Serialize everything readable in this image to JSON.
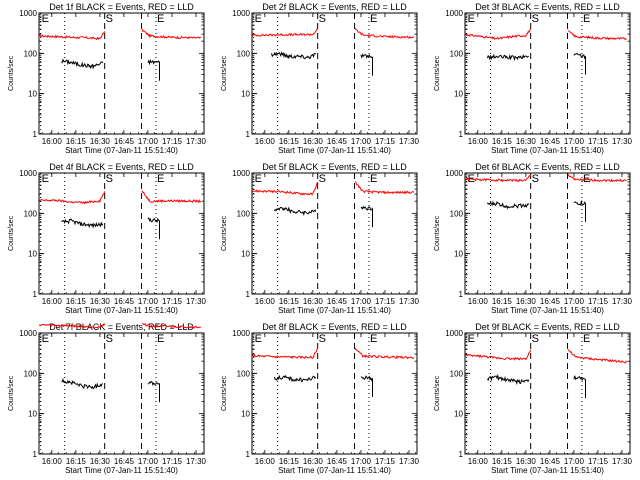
{
  "chart_data": {
    "type": "line",
    "y_scale": "log",
    "ylim": [
      1,
      1000
    ],
    "y_ticks": [
      {
        "value": 1,
        "label": "1"
      },
      {
        "value": 10,
        "label": "10"
      },
      {
        "value": 100,
        "label": "100"
      },
      {
        "value": 1000,
        "label": "1000"
      }
    ],
    "xlim": [
      "15:52",
      "17:35"
    ],
    "x_ticks": [
      "16:00",
      "16:15",
      "16:30",
      "16:45",
      "17:00",
      "17:15",
      "17:30"
    ],
    "ylabel": "Counts/sec",
    "xlabel": "Start Time (07-Jan-11 15:51:40)",
    "series_legend": "BLACK = Events, RED = LLD",
    "series": [
      {
        "name": "Events",
        "color": "#000000"
      },
      {
        "name": "LLD",
        "color": "#ff0000"
      }
    ],
    "markers": [
      {
        "label": "E",
        "time": "15:53",
        "style": "dotted"
      },
      {
        "label": "",
        "time": "16:08",
        "style": "dotted"
      },
      {
        "label": "S",
        "time": "16:33",
        "style": "dashed"
      },
      {
        "label": "",
        "time": "16:56",
        "style": "dashed"
      },
      {
        "label": "E",
        "time": "17:05",
        "style": "dotted"
      }
    ],
    "gaps": [
      [
        "16:33",
        "16:56"
      ]
    ],
    "panels": [
      {
        "title": "Det 1f BLACK = Events, RED = LLD",
        "events": [
          [
            16.1,
            65
          ],
          [
            16.2,
            60
          ],
          [
            16.3,
            52
          ],
          [
            16.43,
            48
          ],
          [
            16.53,
            58
          ],
          [
            17.0,
            62
          ],
          [
            17.12,
            60
          ]
        ],
        "lld": [
          [
            15.87,
            270
          ],
          [
            16.05,
            260
          ],
          [
            16.2,
            250
          ],
          [
            16.35,
            245
          ],
          [
            16.5,
            230
          ],
          [
            16.55,
            350
          ],
          [
            16.94,
            380
          ],
          [
            17.02,
            270
          ],
          [
            17.25,
            250
          ],
          [
            17.55,
            240
          ]
        ]
      },
      {
        "title": "Det 2f BLACK = Events, RED = LLD",
        "events": [
          [
            16.07,
            95
          ],
          [
            16.15,
            100
          ],
          [
            16.25,
            85
          ],
          [
            16.35,
            85
          ],
          [
            16.45,
            80
          ],
          [
            16.53,
            95
          ],
          [
            17.0,
            90
          ],
          [
            17.12,
            80
          ]
        ],
        "lld": [
          [
            15.87,
            280
          ],
          [
            16.05,
            285
          ],
          [
            16.2,
            290
          ],
          [
            16.35,
            290
          ],
          [
            16.5,
            295
          ],
          [
            16.55,
            400
          ],
          [
            16.94,
            400
          ],
          [
            17.02,
            285
          ],
          [
            17.25,
            260
          ],
          [
            17.55,
            250
          ]
        ]
      },
      {
        "title": "Det 3f BLACK = Events, RED = LLD",
        "events": [
          [
            16.1,
            80
          ],
          [
            16.2,
            82
          ],
          [
            16.3,
            80
          ],
          [
            16.43,
            78
          ],
          [
            16.53,
            85
          ],
          [
            17.0,
            95
          ],
          [
            17.12,
            85
          ]
        ],
        "lld": [
          [
            15.87,
            290
          ],
          [
            16.05,
            260
          ],
          [
            16.2,
            230
          ],
          [
            16.35,
            260
          ],
          [
            16.5,
            280
          ],
          [
            16.55,
            400
          ],
          [
            16.94,
            350
          ],
          [
            17.02,
            260
          ],
          [
            17.25,
            240
          ],
          [
            17.55,
            230
          ]
        ]
      },
      {
        "title": "Det 4f BLACK = Events, RED = LLD",
        "events": [
          [
            16.1,
            60
          ],
          [
            16.2,
            65
          ],
          [
            16.3,
            55
          ],
          [
            16.43,
            50
          ],
          [
            16.53,
            55
          ],
          [
            17.0,
            70
          ],
          [
            17.12,
            65
          ]
        ],
        "lld": [
          [
            15.87,
            210
          ],
          [
            16.05,
            210
          ],
          [
            16.2,
            190
          ],
          [
            16.35,
            185
          ],
          [
            16.5,
            205
          ],
          [
            16.55,
            350
          ],
          [
            16.94,
            350
          ],
          [
            17.02,
            200
          ],
          [
            17.25,
            205
          ],
          [
            17.55,
            200
          ]
        ]
      },
      {
        "title": "Det 5f BLACK = Events, RED = LLD",
        "events": [
          [
            16.1,
            120
          ],
          [
            16.2,
            135
          ],
          [
            16.3,
            110
          ],
          [
            16.43,
            105
          ],
          [
            16.53,
            110
          ],
          [
            17.0,
            145
          ],
          [
            17.12,
            130
          ]
        ],
        "lld": [
          [
            15.87,
            360
          ],
          [
            16.05,
            350
          ],
          [
            16.2,
            340
          ],
          [
            16.35,
            310
          ],
          [
            16.5,
            300
          ],
          [
            16.55,
            600
          ],
          [
            16.94,
            600
          ],
          [
            17.02,
            350
          ],
          [
            17.25,
            330
          ],
          [
            17.55,
            330
          ]
        ]
      },
      {
        "title": "Det 6f BLACK = Events, RED = LLD",
        "events": [
          [
            16.1,
            170
          ],
          [
            16.2,
            175
          ],
          [
            16.3,
            150
          ],
          [
            16.43,
            155
          ],
          [
            16.53,
            165
          ],
          [
            17.0,
            180
          ],
          [
            17.12,
            175
          ]
        ],
        "lld": [
          [
            15.87,
            700
          ],
          [
            16.05,
            680
          ],
          [
            16.2,
            670
          ],
          [
            16.35,
            660
          ],
          [
            16.5,
            650
          ],
          [
            16.55,
            900
          ],
          [
            16.94,
            900
          ],
          [
            17.02,
            680
          ],
          [
            17.25,
            660
          ],
          [
            17.55,
            650
          ]
        ]
      },
      {
        "title": "Det 7f BLACK = Events, RED = LLD",
        "events": [
          [
            16.1,
            65
          ],
          [
            16.2,
            60
          ],
          [
            16.3,
            50
          ],
          [
            16.43,
            45
          ],
          [
            16.53,
            55
          ],
          [
            17.0,
            60
          ],
          [
            17.12,
            55
          ]
        ],
        "lld": [
          [
            15.87,
            1600
          ],
          [
            16.05,
            1550
          ],
          [
            16.2,
            1500
          ],
          [
            16.35,
            1450
          ],
          [
            16.5,
            1400
          ],
          [
            16.55,
            1700
          ],
          [
            16.94,
            1700
          ],
          [
            17.02,
            1500
          ],
          [
            17.25,
            1450
          ],
          [
            17.55,
            1400
          ]
        ]
      },
      {
        "title": "Det 8f BLACK = Events, RED = LLD",
        "events": [
          [
            16.1,
            75
          ],
          [
            16.2,
            80
          ],
          [
            16.3,
            70
          ],
          [
            16.43,
            68
          ],
          [
            16.53,
            80
          ],
          [
            17.0,
            80
          ],
          [
            17.12,
            75
          ]
        ],
        "lld": [
          [
            15.87,
            270
          ],
          [
            16.05,
            260
          ],
          [
            16.2,
            255
          ],
          [
            16.35,
            250
          ],
          [
            16.5,
            250
          ],
          [
            16.55,
            420
          ],
          [
            16.94,
            420
          ],
          [
            17.02,
            270
          ],
          [
            17.25,
            255
          ],
          [
            17.55,
            245
          ]
        ]
      },
      {
        "title": "Det 9f BLACK = Events, RED = LLD",
        "events": [
          [
            16.1,
            75
          ],
          [
            16.2,
            80
          ],
          [
            16.3,
            70
          ],
          [
            16.43,
            62
          ],
          [
            16.53,
            70
          ],
          [
            17.0,
            80
          ],
          [
            17.12,
            70
          ]
        ],
        "lld": [
          [
            15.87,
            280
          ],
          [
            16.05,
            265
          ],
          [
            16.2,
            240
          ],
          [
            16.35,
            230
          ],
          [
            16.5,
            230
          ],
          [
            16.55,
            380
          ],
          [
            16.94,
            380
          ],
          [
            17.02,
            250
          ],
          [
            17.25,
            220
          ],
          [
            17.55,
            190
          ]
        ]
      }
    ]
  }
}
